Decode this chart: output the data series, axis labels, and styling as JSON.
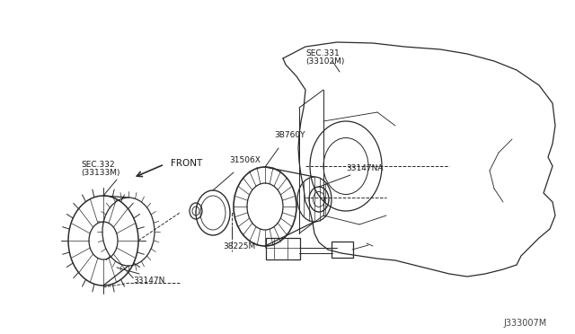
{
  "bg_color": "#ffffff",
  "diagram_id": "J333007M",
  "line_color": "#2a2a2a",
  "text_color": "#1a1a1a",
  "lw": 0.9,
  "labels": {
    "SEC331_line1": "SEC.331",
    "SEC331_line2": "(33102M)",
    "label_3B760Y": "3B760Y",
    "label_31506X": "31506X",
    "label_33147NA": "33147NA",
    "SEC332_line1": "SEC.332",
    "SEC332_line2": "(33133M)",
    "label_38225M": "38225M",
    "label_33147N": "33147N",
    "label_FRONT": "FRONT",
    "diagram_code": "J333007M"
  }
}
